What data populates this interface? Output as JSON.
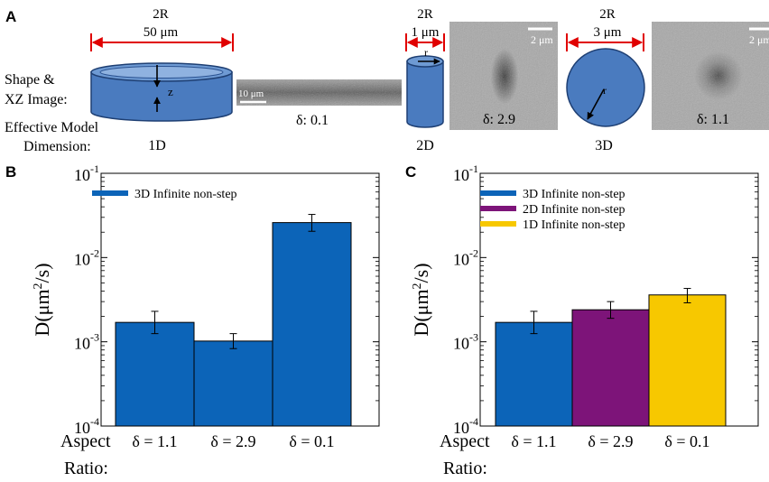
{
  "panel_a": {
    "letter": "A",
    "shape_label": "Shape &",
    "xz_label": "XZ Image:",
    "model_label_1": "Effective Model",
    "model_label_2": "Dimension:",
    "disk": {
      "dim_top": "2R",
      "dim_value": "50 μm",
      "axis_label": "z",
      "model_dim": "1D"
    },
    "strip": {
      "scale_label": "10 μm",
      "delta": "δ: 0.1"
    },
    "cylinder": {
      "dim_top": "2R",
      "dim_value": "1 μm",
      "axis_label": "r",
      "model_dim": "2D"
    },
    "micro1": {
      "scale_label": "2 μm",
      "delta": "δ: 2.9"
    },
    "sphere": {
      "dim_top": "2R",
      "dim_value": "3 μm",
      "axis_label": "r",
      "model_dim": "3D"
    },
    "micro2": {
      "scale_label": "2 μm",
      "delta": "δ: 1.1"
    },
    "colors": {
      "shape_fill": "#4a7bbf",
      "shape_stroke": "#1e3f73",
      "dimension_arrow": "#e00000"
    }
  },
  "chart_data": [
    {
      "panel": "B",
      "type": "bar",
      "xlabel": "Aspect Ratio:",
      "xlabel_line1": "Aspect",
      "xlabel_line2": "Ratio:",
      "ylabel": "D(μm²/s)",
      "ylabel_main": "D(μm",
      "ylabel_sup": "2",
      "ylabel_tail": "/s)",
      "yscale": "log",
      "ylim": [
        0.0001,
        0.1
      ],
      "ytick_labels": [
        {
          "value": 0.1,
          "base": "10",
          "exp": "-1"
        },
        {
          "value": 0.01,
          "base": "10",
          "exp": "-2"
        },
        {
          "value": 0.001,
          "base": "10",
          "exp": "-3"
        },
        {
          "value": 0.0001,
          "base": "10",
          "exp": "-4"
        }
      ],
      "categories": [
        "δ = 1.1",
        "δ = 2.9",
        "δ = 0.1"
      ],
      "legend_position": "top-left",
      "series": [
        {
          "name": "3D Infinite non-step",
          "color": "#0c64b8",
          "values": [
            0.0017,
            0.00102,
            0.026
          ],
          "err_low": [
            0.00125,
            0.00083,
            0.0205
          ],
          "err_high": [
            0.0023,
            0.00125,
            0.0325
          ]
        }
      ],
      "bar_colors": [
        "#0c64b8",
        "#0c64b8",
        "#0c64b8"
      ],
      "bar_series": [
        0,
        0,
        0
      ]
    },
    {
      "panel": "C",
      "type": "bar",
      "xlabel": "Aspect Ratio:",
      "xlabel_line1": "Aspect",
      "xlabel_line2": "Ratio:",
      "ylabel": "D(μm²/s)",
      "ylabel_main": "D(μm",
      "ylabel_sup": "2",
      "ylabel_tail": "/s)",
      "yscale": "log",
      "ylim": [
        0.0001,
        0.1
      ],
      "ytick_labels": [
        {
          "value": 0.1,
          "base": "10",
          "exp": "-1"
        },
        {
          "value": 0.01,
          "base": "10",
          "exp": "-2"
        },
        {
          "value": 0.001,
          "base": "10",
          "exp": "-3"
        },
        {
          "value": 0.0001,
          "base": "10",
          "exp": "-4"
        }
      ],
      "categories": [
        "δ = 1.1",
        "δ = 2.9",
        "δ = 0.1"
      ],
      "legend_position": "top-left",
      "series": [
        {
          "name": "3D Infinite non-step",
          "color": "#0c64b8",
          "values": [
            0.0017,
            null,
            null
          ],
          "err_low": [
            0.00125,
            null,
            null
          ],
          "err_high": [
            0.0023,
            null,
            null
          ]
        },
        {
          "name": "2D Infinite non-step",
          "color": "#7d1479",
          "values": [
            null,
            0.0024,
            null
          ],
          "err_low": [
            null,
            0.0019,
            null
          ],
          "err_high": [
            null,
            0.003,
            null
          ]
        },
        {
          "name": "1D Infinite non-step",
          "color": "#f7c800",
          "values": [
            null,
            null,
            0.0036
          ],
          "err_low": [
            null,
            null,
            0.0029
          ],
          "err_high": [
            null,
            null,
            0.0043
          ]
        }
      ],
      "bar_colors": [
        "#0c64b8",
        "#7d1479",
        "#f7c800"
      ],
      "bar_series": [
        0,
        1,
        2
      ]
    }
  ]
}
